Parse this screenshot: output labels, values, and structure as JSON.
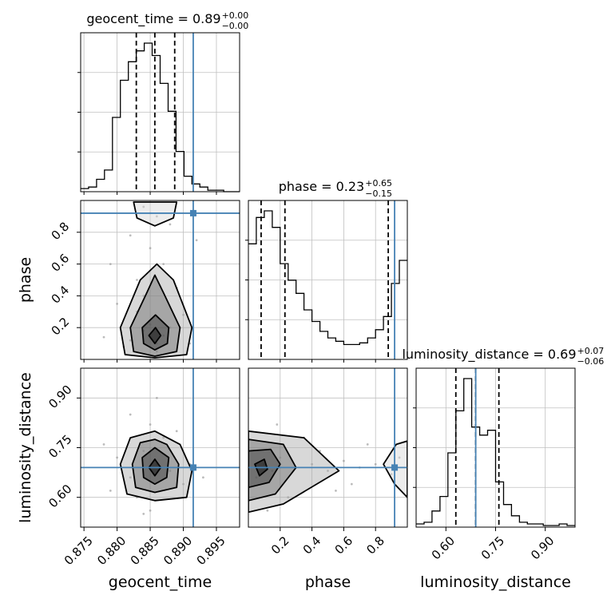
{
  "chart_data": {
    "type": "corner",
    "parameters": [
      "geocent_time",
      "phase",
      "luminosity_distance"
    ],
    "truths": {
      "geocent_time": 0.8915,
      "phase": 0.92,
      "luminosity_distance": 0.69
    },
    "colors": {
      "truth": "#4682b4",
      "hist": "#000000",
      "grid": "#c0c0c0",
      "points": "#a0a0a0"
    },
    "grid": true,
    "titles": {
      "geocent_time": {
        "text": "geocent_time = 0.89",
        "plus": "+0.00",
        "minus": "−0.00"
      },
      "phase": {
        "text": "phase = 0.23",
        "plus": "+0.65",
        "minus": "−0.15"
      },
      "luminosity_distance": {
        "text": "luminosity_distance = 0.69",
        "plus": "+0.07",
        "minus": "−0.06"
      }
    },
    "x_tick_labels": {
      "geocent_time": [
        "0.875",
        "0.880",
        "0.885",
        "0.890",
        "0.895"
      ],
      "phase": [
        "0.2",
        "0.4",
        "0.6",
        "0.8"
      ],
      "luminosity_distance": [
        "0.60",
        "0.75",
        "0.90"
      ]
    },
    "y_tick_labels": {
      "phase": [
        "0.2",
        "0.4",
        "0.6",
        "0.8"
      ],
      "luminosity_distance": [
        "0.60",
        "0.75",
        "0.90"
      ]
    },
    "marginals": {
      "geocent_time": {
        "range": [
          0.8745,
          0.8985
        ],
        "edges": [
          0.8745,
          0.8757,
          0.8769,
          0.8781,
          0.8793,
          0.8805,
          0.8817,
          0.8829,
          0.8841,
          0.8853,
          0.8865,
          0.8877,
          0.8889,
          0.8901,
          0.8913,
          0.8925,
          0.8937,
          0.8949,
          0.8961,
          0.8973,
          0.8985
        ],
        "counts": [
          2,
          3,
          8,
          14,
          48,
          72,
          84,
          91,
          96,
          88,
          70,
          52,
          26,
          10,
          5,
          3,
          1,
          1,
          0,
          0
        ],
        "quantiles": [
          0.8829,
          0.8857,
          0.8887
        ]
      },
      "phase": {
        "range": [
          0.0,
          1.0
        ],
        "edges": [
          0.0,
          0.05,
          0.1,
          0.15,
          0.2,
          0.25,
          0.3,
          0.35,
          0.4,
          0.45,
          0.5,
          0.55,
          0.6,
          0.65,
          0.7,
          0.75,
          0.8,
          0.85,
          0.9,
          0.95,
          1.0
        ],
        "counts": [
          70,
          86,
          90,
          80,
          58,
          48,
          40,
          30,
          23,
          17,
          13,
          11,
          9,
          9,
          10,
          13,
          18,
          26,
          46,
          60
        ],
        "quantiles": [
          0.08,
          0.23,
          0.88
        ]
      },
      "luminosity_distance": {
        "range": [
          0.51,
          0.99
        ],
        "edges": [
          0.51,
          0.534,
          0.558,
          0.582,
          0.606,
          0.63,
          0.654,
          0.678,
          0.702,
          0.726,
          0.75,
          0.774,
          0.798,
          0.822,
          0.846,
          0.87,
          0.894,
          0.918,
          0.942,
          0.966,
          0.99
        ],
        "counts": [
          2,
          3,
          10,
          19,
          46,
          72,
          92,
          62,
          57,
          60,
          28,
          14,
          7,
          3,
          2,
          2,
          1,
          1,
          2,
          1
        ],
        "quantiles": [
          0.63,
          0.69,
          0.76
        ]
      }
    },
    "joint": [
      {
        "x": "geocent_time",
        "y": "phase",
        "points": [
          [
            0.882,
            0.12
          ],
          [
            0.884,
            0.18
          ],
          [
            0.886,
            0.1
          ],
          [
            0.885,
            0.22
          ],
          [
            0.883,
            0.3
          ],
          [
            0.887,
            0.15
          ],
          [
            0.881,
            0.08
          ],
          [
            0.888,
            0.2
          ],
          [
            0.885,
            0.92
          ],
          [
            0.884,
            0.96
          ],
          [
            0.886,
            0.9
          ],
          [
            0.883,
            0.5
          ],
          [
            0.887,
            0.6
          ],
          [
            0.88,
            0.35
          ],
          [
            0.89,
            0.28
          ],
          [
            0.878,
            0.14
          ],
          [
            0.891,
            0.1
          ],
          [
            0.885,
            0.7
          ],
          [
            0.882,
            0.78
          ],
          [
            0.889,
            0.45
          ],
          [
            0.886,
            0.05
          ],
          [
            0.884,
            0.4
          ],
          [
            0.888,
            0.85
          ],
          [
            0.879,
            0.6
          ],
          [
            0.892,
            0.75
          ]
        ],
        "contours": [
          {
            "level": 1,
            "points": [
              [
                0.8857,
                0.1
              ],
              [
                0.8866,
                0.15
              ],
              [
                0.8858,
                0.2
              ],
              [
                0.8848,
                0.15
              ]
            ]
          },
          {
            "level": 2,
            "points": [
              [
                0.8857,
                0.06
              ],
              [
                0.8876,
                0.1
              ],
              [
                0.8878,
                0.2
              ],
              [
                0.8858,
                0.28
              ],
              [
                0.8838,
                0.2
              ],
              [
                0.884,
                0.1
              ]
            ]
          },
          {
            "level": 3,
            "points": [
              [
                0.8857,
                0.02
              ],
              [
                0.889,
                0.05
              ],
              [
                0.8895,
                0.2
              ],
              [
                0.887,
                0.42
              ],
              [
                0.8857,
                0.53
              ],
              [
                0.8845,
                0.42
              ],
              [
                0.882,
                0.2
              ],
              [
                0.8825,
                0.05
              ]
            ]
          },
          {
            "level": 4,
            "points": [
              [
                0.8857,
                0.01
              ],
              [
                0.8905,
                0.03
              ],
              [
                0.8913,
                0.2
              ],
              [
                0.8885,
                0.5
              ],
              [
                0.886,
                0.6
              ],
              [
                0.8835,
                0.5
              ],
              [
                0.8805,
                0.2
              ],
              [
                0.8812,
                0.03
              ]
            ]
          },
          {
            "level": 5,
            "points": [
              [
                0.8857,
                0.84
              ],
              [
                0.8885,
                0.89
              ],
              [
                0.889,
                0.99
              ],
              [
                0.8825,
                0.99
              ],
              [
                0.883,
                0.89
              ]
            ]
          }
        ]
      },
      {
        "x": "geocent_time",
        "y": "luminosity_distance",
        "points": [
          [
            0.882,
            0.66
          ],
          [
            0.886,
            0.7
          ],
          [
            0.884,
            0.74
          ],
          [
            0.888,
            0.68
          ],
          [
            0.88,
            0.72
          ],
          [
            0.89,
            0.64
          ],
          [
            0.883,
            0.6
          ],
          [
            0.887,
            0.78
          ],
          [
            0.885,
            0.82
          ],
          [
            0.879,
            0.62
          ],
          [
            0.891,
            0.7
          ],
          [
            0.885,
            0.56
          ],
          [
            0.878,
            0.76
          ],
          [
            0.889,
            0.8
          ],
          [
            0.886,
            0.9
          ],
          [
            0.884,
            0.55
          ],
          [
            0.882,
            0.85
          ],
          [
            0.893,
            0.66
          ]
        ],
        "contours": [
          {
            "level": 1,
            "points": [
              [
                0.8857,
                0.665
              ],
              [
                0.8866,
                0.69
              ],
              [
                0.8857,
                0.715
              ],
              [
                0.8848,
                0.69
              ]
            ]
          },
          {
            "level": 2,
            "points": [
              [
                0.8857,
                0.64
              ],
              [
                0.8875,
                0.66
              ],
              [
                0.8878,
                0.72
              ],
              [
                0.8857,
                0.75
              ],
              [
                0.8838,
                0.72
              ],
              [
                0.884,
                0.66
              ]
            ]
          },
          {
            "level": 3,
            "points": [
              [
                0.8857,
                0.615
              ],
              [
                0.889,
                0.63
              ],
              [
                0.8893,
                0.7
              ],
              [
                0.8875,
                0.76
              ],
              [
                0.8857,
                0.775
              ],
              [
                0.8835,
                0.765
              ],
              [
                0.8823,
                0.7
              ],
              [
                0.8828,
                0.63
              ]
            ]
          },
          {
            "level": 4,
            "points": [
              [
                0.8857,
                0.59
              ],
              [
                0.8905,
                0.6
              ],
              [
                0.8913,
                0.68
              ],
              [
                0.8895,
                0.76
              ],
              [
                0.8857,
                0.8
              ],
              [
                0.882,
                0.78
              ],
              [
                0.8805,
                0.7
              ],
              [
                0.8815,
                0.61
              ]
            ]
          }
        ]
      },
      {
        "x": "phase",
        "y": "luminosity_distance",
        "points": [
          [
            0.05,
            0.66
          ],
          [
            0.1,
            0.7
          ],
          [
            0.15,
            0.68
          ],
          [
            0.2,
            0.72
          ],
          [
            0.3,
            0.69
          ],
          [
            0.4,
            0.7
          ],
          [
            0.5,
            0.68
          ],
          [
            0.6,
            0.71
          ],
          [
            0.7,
            0.69
          ],
          [
            0.8,
            0.7
          ],
          [
            0.9,
            0.67
          ],
          [
            0.95,
            0.72
          ],
          [
            0.25,
            0.6
          ],
          [
            0.35,
            0.78
          ],
          [
            0.55,
            0.62
          ],
          [
            0.75,
            0.76
          ],
          [
            0.12,
            0.56
          ],
          [
            0.18,
            0.82
          ],
          [
            0.45,
            0.74
          ],
          [
            0.65,
            0.64
          ]
        ],
        "contours": [
          {
            "level": 1,
            "points": [
              [
                0.07,
                0.665
              ],
              [
                0.12,
                0.685
              ],
              [
                0.1,
                0.715
              ],
              [
                0.04,
                0.7
              ]
            ]
          },
          {
            "level": 2,
            "points": [
              [
                0.0,
                0.63
              ],
              [
                0.13,
                0.645
              ],
              [
                0.2,
                0.7
              ],
              [
                0.14,
                0.745
              ],
              [
                0.0,
                0.74
              ]
            ]
          },
          {
            "level": 3,
            "points": [
              [
                0.0,
                0.59
              ],
              [
                0.17,
                0.61
              ],
              [
                0.3,
                0.69
              ],
              [
                0.22,
                0.76
              ],
              [
                0.0,
                0.775
              ]
            ]
          },
          {
            "level": 4,
            "points": [
              [
                0.0,
                0.555
              ],
              [
                0.22,
                0.58
              ],
              [
                0.57,
                0.68
              ],
              [
                0.35,
                0.78
              ],
              [
                0.0,
                0.8
              ]
            ]
          },
          {
            "level": 5,
            "points": [
              [
                1.0,
                0.6
              ],
              [
                0.92,
                0.64
              ],
              [
                0.85,
                0.7
              ],
              [
                0.93,
                0.76
              ],
              [
                1.0,
                0.77
              ]
            ]
          }
        ]
      }
    ]
  }
}
